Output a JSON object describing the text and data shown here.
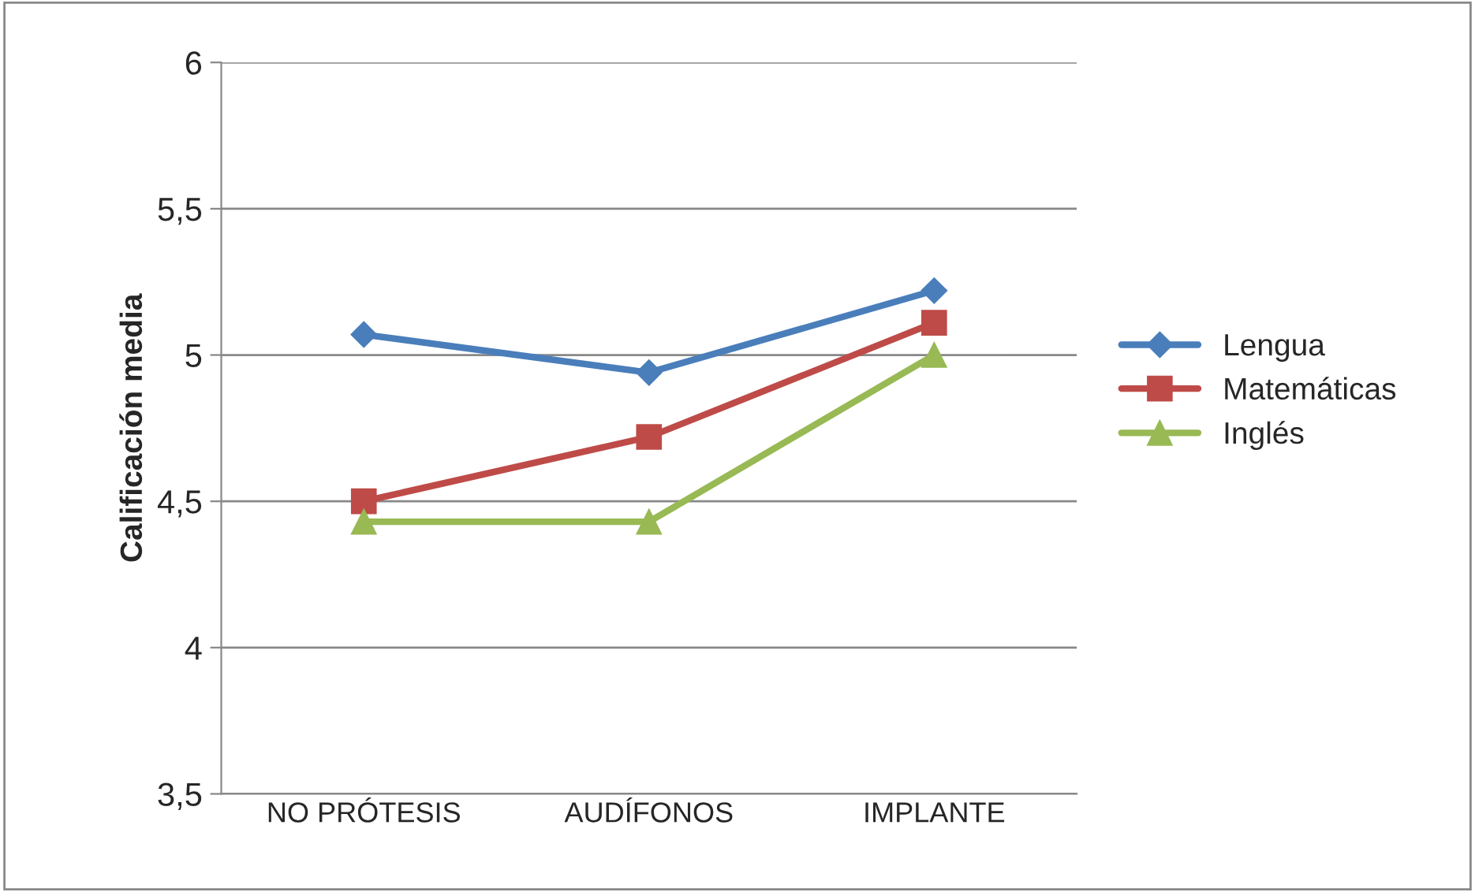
{
  "chart_data": {
    "type": "line",
    "ylabel": "Calificación media",
    "categories": [
      "NO PRÓTESIS",
      "AUDÍFONOS",
      "IMPLANTE"
    ],
    "series": [
      {
        "name": "Lengua",
        "color": "#4a7ebb",
        "marker": "diamond",
        "values": [
          5.07,
          4.94,
          5.22
        ]
      },
      {
        "name": "Matemáticas",
        "color": "#be4b48",
        "marker": "square",
        "values": [
          4.5,
          4.72,
          5.11
        ]
      },
      {
        "name": "Inglés",
        "color": "#98b954",
        "marker": "triangle",
        "values": [
          4.43,
          4.43,
          5.0
        ]
      }
    ],
    "ylim": [
      3.5,
      6
    ],
    "yticks": [
      {
        "value": 3.5,
        "label": "3,5"
      },
      4,
      {
        "value": 4.5,
        "label": "4,5"
      },
      5,
      {
        "value": 5.5,
        "label": "5,5"
      },
      6
    ],
    "grid": "y",
    "legend": "right",
    "line_style": "solid"
  }
}
